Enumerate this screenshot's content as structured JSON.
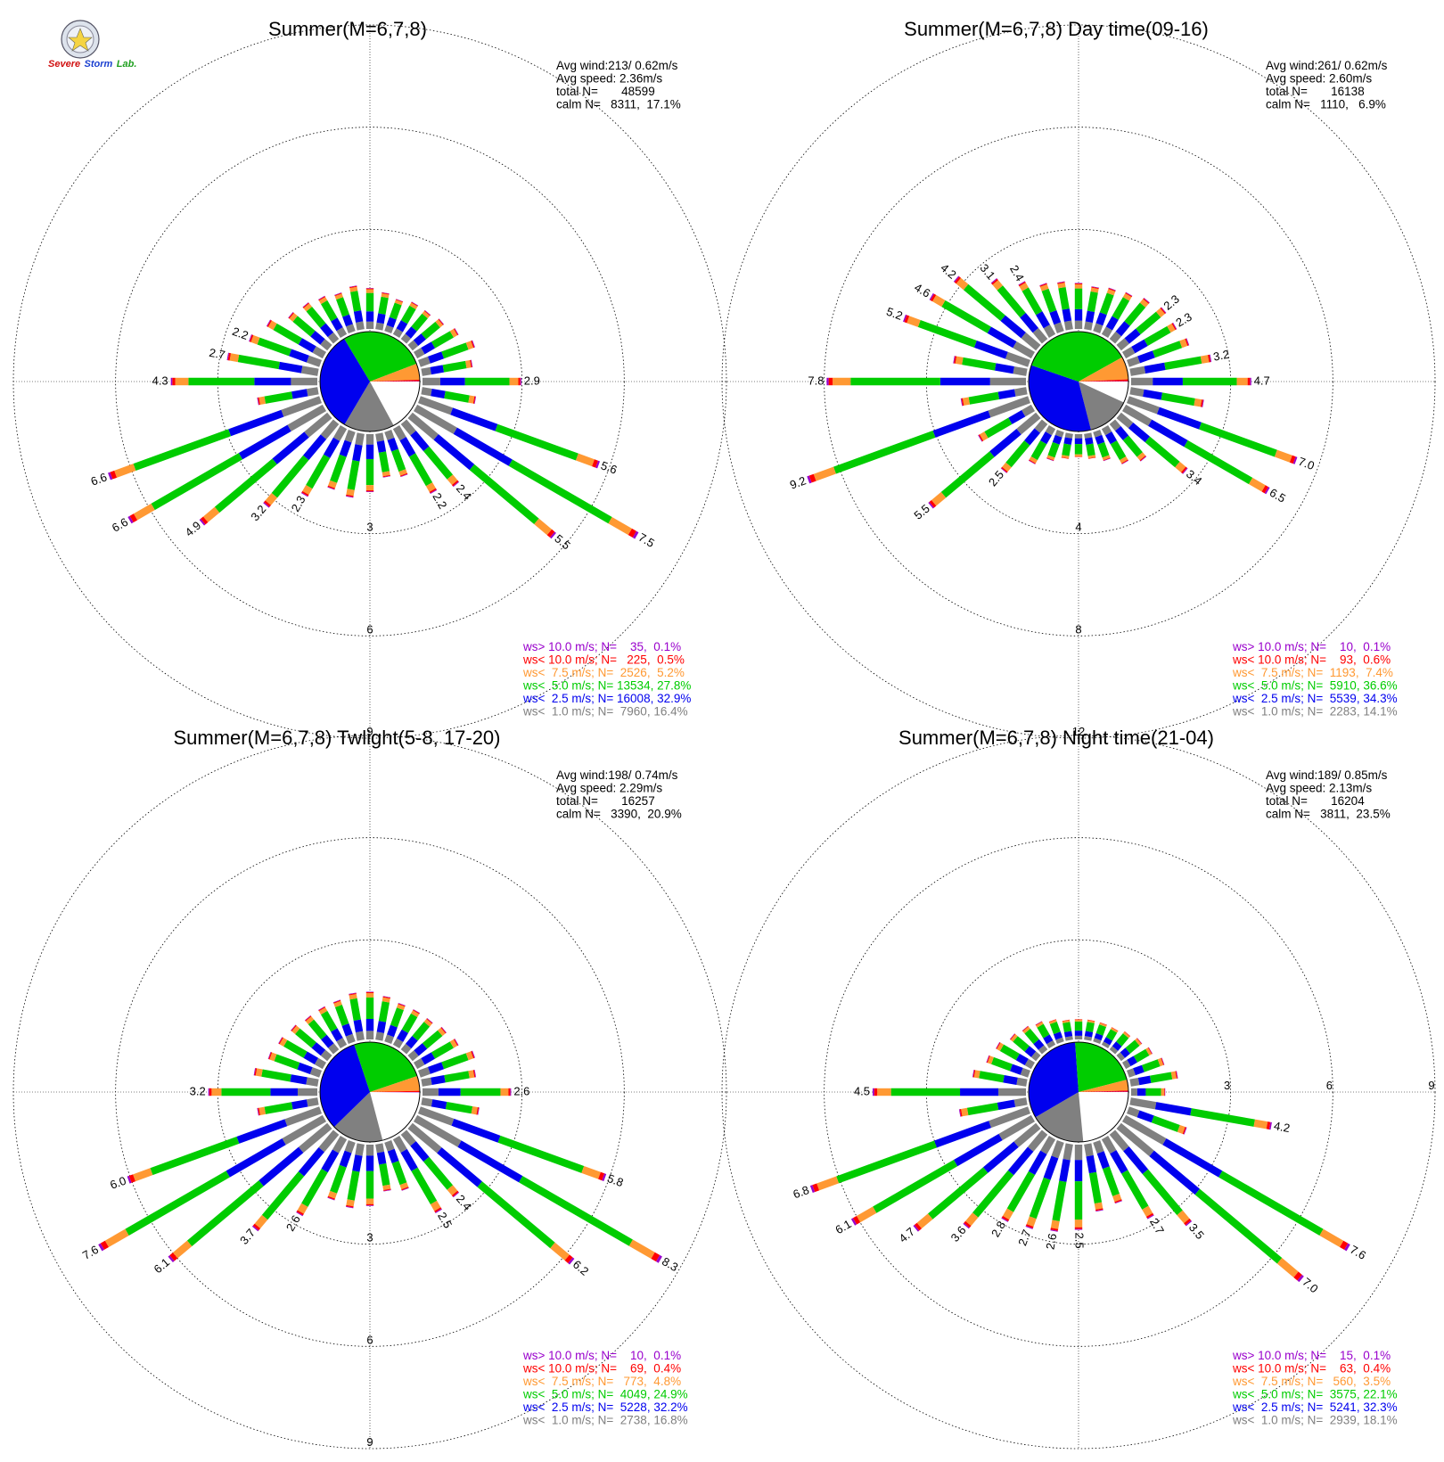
{
  "logo": {
    "line1": "Severe",
    "line2": "Storm",
    "line3": "Lab."
  },
  "colors": {
    "calm": "#ffffff",
    "c1": "#808080",
    "c2": "#0000ee",
    "c3": "#00cc00",
    "c4": "#ff9933",
    "c5": "#ff0000",
    "c6": "#9900cc"
  },
  "chart_data": [
    {
      "type": "pie",
      "title": "Summer(M=6,7,8)",
      "stats": [
        "Avg wind:213/ 0.62m/s",
        "Avg speed: 2.36m/s",
        "total N=       48599",
        "calm N=   8311,  17.1%"
      ],
      "legend": [
        "ws> 10.0 m/s; N=    35,  0.1%",
        "ws< 10.0 m/s; N=   225,  0.5%",
        "ws<  7.5 m/s; N=  2526,  5.2%",
        "ws<  5.0 m/s; N= 13534, 27.8%",
        "ws<  2.5 m/s; N= 16008, 32.9%",
        "ws<  1.0 m/s; N=  7960, 16.4%"
      ],
      "ring_labels": [
        "3",
        "6",
        "9"
      ],
      "ring_values": [
        3,
        6,
        9
      ],
      "max_value": 9,
      "bins": [
        {
          "dir": 0,
          "value": 1.2,
          "label": ""
        },
        {
          "dir": 10,
          "value": 1.1,
          "label": ""
        },
        {
          "dir": 20,
          "value": 1.0,
          "label": ""
        },
        {
          "dir": 30,
          "value": 1.1,
          "label": ""
        },
        {
          "dir": 40,
          "value": 1.1,
          "label": ""
        },
        {
          "dir": 50,
          "value": 1.2,
          "label": ""
        },
        {
          "dir": 60,
          "value": 1.4,
          "label": ""
        },
        {
          "dir": 70,
          "value": 1.7,
          "label": ""
        },
        {
          "dir": 80,
          "value": 1.5,
          "label": ""
        },
        {
          "dir": 90,
          "value": 2.9,
          "label": "2.9"
        },
        {
          "dir": 100,
          "value": 1.6,
          "label": ""
        },
        {
          "dir": 110,
          "value": 5.6,
          "label": "5.6"
        },
        {
          "dir": 120,
          "value": 7.5,
          "label": "7.5"
        },
        {
          "dir": 130,
          "value": 5.5,
          "label": "5.5"
        },
        {
          "dir": 140,
          "value": 2.4,
          "label": "2.4"
        },
        {
          "dir": 150,
          "value": 2.2,
          "label": "2.2"
        },
        {
          "dir": 160,
          "value": 1.4,
          "label": ""
        },
        {
          "dir": 170,
          "value": 1.3,
          "label": ""
        },
        {
          "dir": 180,
          "value": 1.7,
          "label": ""
        },
        {
          "dir": 190,
          "value": 1.9,
          "label": ""
        },
        {
          "dir": 200,
          "value": 1.8,
          "label": ""
        },
        {
          "dir": 210,
          "value": 2.3,
          "label": "2.3"
        },
        {
          "dir": 220,
          "value": 3.2,
          "label": "3.2"
        },
        {
          "dir": 230,
          "value": 4.9,
          "label": "4.9"
        },
        {
          "dir": 240,
          "value": 6.6,
          "label": "6.6"
        },
        {
          "dir": 250,
          "value": 6.6,
          "label": "6.6"
        },
        {
          "dir": 260,
          "value": 1.8,
          "label": ""
        },
        {
          "dir": 270,
          "value": 4.3,
          "label": "4.3"
        },
        {
          "dir": 280,
          "value": 2.7,
          "label": "2.7"
        },
        {
          "dir": 290,
          "value": 2.2,
          "label": "2.2"
        },
        {
          "dir": 300,
          "value": 1.9,
          "label": ""
        },
        {
          "dir": 310,
          "value": 1.5,
          "label": ""
        },
        {
          "dir": 320,
          "value": 1.4,
          "label": ""
        },
        {
          "dir": 330,
          "value": 1.3,
          "label": ""
        },
        {
          "dir": 340,
          "value": 1.2,
          "label": ""
        },
        {
          "dir": 350,
          "value": 1.3,
          "label": ""
        }
      ],
      "pie": [
        {
          "category": "calm",
          "pct": 17.1
        },
        {
          "category": "ws<  1.0 m/s",
          "pct": 16.4
        },
        {
          "category": "ws<  2.5 m/s",
          "pct": 32.9
        },
        {
          "category": "ws<  5.0 m/s",
          "pct": 27.8
        },
        {
          "category": "ws<  7.5 m/s",
          "pct": 5.2
        },
        {
          "category": "ws< 10.0 m/s",
          "pct": 0.5
        },
        {
          "category": "ws> 10.0 m/s",
          "pct": 0.1
        }
      ]
    },
    {
      "type": "pie",
      "title": "Summer(M=6,7,8) Day time(09-16)",
      "stats": [
        "Avg wind:261/ 0.62m/s",
        "Avg speed: 2.60m/s",
        "total N=       16138",
        "calm N=   1110,   6.9%"
      ],
      "legend": [
        "ws> 10.0 m/s; N=    10,  0.1%",
        "ws< 10.0 m/s; N=    93,  0.6%",
        "ws<  7.5 m/s; N=  1193,  7.4%",
        "ws<  5.0 m/s; N=  5910, 36.6%",
        "ws<  2.5 m/s; N=  5539, 34.3%",
        "ws<  1.0 m/s; N=  2283, 14.1%"
      ],
      "ring_labels": [
        "4",
        "8",
        "12"
      ],
      "ring_values": [
        4,
        8,
        12
      ],
      "max_value": 12,
      "bins": [
        {
          "dir": 0,
          "value": 1.8,
          "label": ""
        },
        {
          "dir": 10,
          "value": 1.7,
          "label": ""
        },
        {
          "dir": 20,
          "value": 1.8,
          "label": ""
        },
        {
          "dir": 30,
          "value": 1.9,
          "label": ""
        },
        {
          "dir": 40,
          "value": 2.1,
          "label": ""
        },
        {
          "dir": 50,
          "value": 2.3,
          "label": "2.3"
        },
        {
          "dir": 60,
          "value": 2.3,
          "label": "2.3"
        },
        {
          "dir": 70,
          "value": 2.5,
          "label": ""
        },
        {
          "dir": 80,
          "value": 3.2,
          "label": "3.2"
        },
        {
          "dir": 90,
          "value": 4.7,
          "label": "4.7"
        },
        {
          "dir": 100,
          "value": 2.9,
          "label": ""
        },
        {
          "dir": 110,
          "value": 7.0,
          "label": "7.0"
        },
        {
          "dir": 120,
          "value": 6.5,
          "label": "6.5"
        },
        {
          "dir": 130,
          "value": 3.4,
          "label": "3.4"
        },
        {
          "dir": 140,
          "value": 1.9,
          "label": ""
        },
        {
          "dir": 150,
          "value": 1.6,
          "label": ""
        },
        {
          "dir": 160,
          "value": 1.2,
          "label": ""
        },
        {
          "dir": 170,
          "value": 1.0,
          "label": ""
        },
        {
          "dir": 180,
          "value": 0.9,
          "label": ""
        },
        {
          "dir": 190,
          "value": 1.0,
          "label": ""
        },
        {
          "dir": 200,
          "value": 1.2,
          "label": ""
        },
        {
          "dir": 210,
          "value": 1.6,
          "label": ""
        },
        {
          "dir": 220,
          "value": 2.5,
          "label": "2.5"
        },
        {
          "dir": 230,
          "value": 5.5,
          "label": "5.5"
        },
        {
          "dir": 240,
          "value": 2.4,
          "label": ""
        },
        {
          "dir": 250,
          "value": 9.2,
          "label": "9.2"
        },
        {
          "dir": 260,
          "value": 2.6,
          "label": ""
        },
        {
          "dir": 270,
          "value": 7.8,
          "label": "7.8"
        },
        {
          "dir": 280,
          "value": 2.9,
          "label": ""
        },
        {
          "dir": 290,
          "value": 5.2,
          "label": "5.2"
        },
        {
          "dir": 300,
          "value": 4.6,
          "label": "4.6"
        },
        {
          "dir": 310,
          "value": 4.2,
          "label": "4.2"
        },
        {
          "dir": 320,
          "value": 3.1,
          "label": "3.1"
        },
        {
          "dir": 330,
          "value": 2.4,
          "label": "2.4"
        },
        {
          "dir": 340,
          "value": 2.0,
          "label": ""
        },
        {
          "dir": 350,
          "value": 1.9,
          "label": ""
        }
      ],
      "pie": [
        {
          "category": "calm",
          "pct": 6.9
        },
        {
          "category": "ws<  1.0 m/s",
          "pct": 14.1
        },
        {
          "category": "ws<  2.5 m/s",
          "pct": 34.3
        },
        {
          "category": "ws<  5.0 m/s",
          "pct": 36.6
        },
        {
          "category": "ws<  7.5 m/s",
          "pct": 7.4
        },
        {
          "category": "ws< 10.0 m/s",
          "pct": 0.6
        },
        {
          "category": "ws> 10.0 m/s",
          "pct": 0.1
        }
      ]
    },
    {
      "type": "pie",
      "title": "Summer(M=6,7,8) Twlight(5-8, 17-20)",
      "stats": [
        "Avg wind:198/ 0.74m/s",
        "Avg speed: 2.29m/s",
        "total N=       16257",
        "calm N=   3390,  20.9%"
      ],
      "legend": [
        "ws> 10.0 m/s; N=    10,  0.1%",
        "ws< 10.0 m/s; N=    69,  0.4%",
        "ws<  7.5 m/s; N=   773,  4.8%",
        "ws<  5.0 m/s; N=  4049, 24.9%",
        "ws<  2.5 m/s; N=  5228, 32.2%",
        "ws<  1.0 m/s; N=  2738, 16.8%"
      ],
      "ring_labels": [
        "3",
        "6",
        "9"
      ],
      "ring_values": [
        3,
        6,
        9
      ],
      "max_value": 9,
      "bins": [
        {
          "dir": 0,
          "value": 1.4,
          "label": ""
        },
        {
          "dir": 10,
          "value": 1.3,
          "label": ""
        },
        {
          "dir": 20,
          "value": 1.2,
          "label": ""
        },
        {
          "dir": 30,
          "value": 1.2,
          "label": ""
        },
        {
          "dir": 40,
          "value": 1.2,
          "label": ""
        },
        {
          "dir": 50,
          "value": 1.3,
          "label": ""
        },
        {
          "dir": 60,
          "value": 1.4,
          "label": ""
        },
        {
          "dir": 70,
          "value": 1.7,
          "label": ""
        },
        {
          "dir": 80,
          "value": 1.6,
          "label": ""
        },
        {
          "dir": 90,
          "value": 2.6,
          "label": "2.6"
        },
        {
          "dir": 100,
          "value": 1.7,
          "label": ""
        },
        {
          "dir": 110,
          "value": 5.8,
          "label": "5.8"
        },
        {
          "dir": 120,
          "value": 8.3,
          "label": "8.3"
        },
        {
          "dir": 130,
          "value": 6.2,
          "label": "6.2"
        },
        {
          "dir": 140,
          "value": 2.4,
          "label": "2.4"
        },
        {
          "dir": 150,
          "value": 2.5,
          "label": "2.5"
        },
        {
          "dir": 160,
          "value": 1.5,
          "label": ""
        },
        {
          "dir": 170,
          "value": 1.4,
          "label": ""
        },
        {
          "dir": 180,
          "value": 1.8,
          "label": ""
        },
        {
          "dir": 190,
          "value": 1.9,
          "label": ""
        },
        {
          "dir": 200,
          "value": 1.8,
          "label": ""
        },
        {
          "dir": 210,
          "value": 2.6,
          "label": "2.6"
        },
        {
          "dir": 220,
          "value": 3.7,
          "label": "3.7"
        },
        {
          "dir": 230,
          "value": 6.1,
          "label": "6.1"
        },
        {
          "dir": 240,
          "value": 7.6,
          "label": "7.6"
        },
        {
          "dir": 250,
          "value": 6.0,
          "label": "6.0"
        },
        {
          "dir": 260,
          "value": 1.8,
          "label": ""
        },
        {
          "dir": 270,
          "value": 3.2,
          "label": "3.2"
        },
        {
          "dir": 280,
          "value": 1.9,
          "label": ""
        },
        {
          "dir": 290,
          "value": 1.6,
          "label": ""
        },
        {
          "dir": 300,
          "value": 1.5,
          "label": ""
        },
        {
          "dir": 310,
          "value": 1.4,
          "label": ""
        },
        {
          "dir": 320,
          "value": 1.3,
          "label": ""
        },
        {
          "dir": 330,
          "value": 1.3,
          "label": ""
        },
        {
          "dir": 340,
          "value": 1.3,
          "label": ""
        },
        {
          "dir": 350,
          "value": 1.4,
          "label": ""
        }
      ],
      "pie": [
        {
          "category": "calm",
          "pct": 20.9
        },
        {
          "category": "ws<  1.0 m/s",
          "pct": 16.8
        },
        {
          "category": "ws<  2.5 m/s",
          "pct": 32.2
        },
        {
          "category": "ws<  5.0 m/s",
          "pct": 24.9
        },
        {
          "category": "ws<  7.5 m/s",
          "pct": 4.8
        },
        {
          "category": "ws< 10.0 m/s",
          "pct": 0.4
        },
        {
          "category": "ws> 10.0 m/s",
          "pct": 0.1
        }
      ]
    },
    {
      "type": "pie",
      "title": "Summer(M=6,7,8) Night time(21-04)",
      "stats": [
        "Avg wind:189/ 0.85m/s",
        "Avg speed: 2.13m/s",
        "total N=       16204",
        "calm N=   3811,  23.5%"
      ],
      "legend": [
        "ws> 10.0 m/s; N=    15,  0.1%",
        "ws< 10.0 m/s; N=    63,  0.4%",
        "ws<  7.5 m/s; N=   560,  3.5%",
        "ws<  5.0 m/s; N=  3575, 22.1%",
        "ws<  2.5 m/s; N=  5241, 32.3%",
        "ws<  1.0 m/s; N=  2939, 18.1%"
      ],
      "ring_labels": [
        "3",
        "6",
        "9"
      ],
      "ring_values": [
        3,
        6,
        9
      ],
      "max_value": 9,
      "bins": [
        {
          "dir": 0,
          "value": 0.6,
          "label": ""
        },
        {
          "dir": 10,
          "value": 0.6,
          "label": ""
        },
        {
          "dir": 20,
          "value": 0.6,
          "label": ""
        },
        {
          "dir": 30,
          "value": 0.6,
          "label": ""
        },
        {
          "dir": 40,
          "value": 0.7,
          "label": ""
        },
        {
          "dir": 50,
          "value": 0.8,
          "label": ""
        },
        {
          "dir": 60,
          "value": 0.9,
          "label": ""
        },
        {
          "dir": 70,
          "value": 1.1,
          "label": ""
        },
        {
          "dir": 80,
          "value": 1.4,
          "label": ""
        },
        {
          "dir": 90,
          "value": 1.0,
          "label": ""
        },
        {
          "dir": 100,
          "value": 4.2,
          "label": "4.2"
        },
        {
          "dir": 110,
          "value": 1.8,
          "label": ""
        },
        {
          "dir": 120,
          "value": 7.6,
          "label": "7.6"
        },
        {
          "dir": 130,
          "value": 7.0,
          "label": "7.0"
        },
        {
          "dir": 140,
          "value": 3.5,
          "label": "3.5"
        },
        {
          "dir": 150,
          "value": 2.7,
          "label": "2.7"
        },
        {
          "dir": 160,
          "value": 1.9,
          "label": ""
        },
        {
          "dir": 170,
          "value": 2.0,
          "label": ""
        },
        {
          "dir": 180,
          "value": 2.5,
          "label": "2.5"
        },
        {
          "dir": 190,
          "value": 2.6,
          "label": "2.6"
        },
        {
          "dir": 200,
          "value": 2.7,
          "label": "2.7"
        },
        {
          "dir": 210,
          "value": 2.8,
          "label": "2.8"
        },
        {
          "dir": 220,
          "value": 3.6,
          "label": "3.6"
        },
        {
          "dir": 230,
          "value": 4.7,
          "label": "4.7"
        },
        {
          "dir": 240,
          "value": 6.1,
          "label": "6.1"
        },
        {
          "dir": 250,
          "value": 6.8,
          "label": "6.8"
        },
        {
          "dir": 260,
          "value": 2.0,
          "label": ""
        },
        {
          "dir": 270,
          "value": 4.5,
          "label": "4.5"
        },
        {
          "dir": 280,
          "value": 1.6,
          "label": ""
        },
        {
          "dir": 290,
          "value": 1.3,
          "label": ""
        },
        {
          "dir": 300,
          "value": 1.2,
          "label": ""
        },
        {
          "dir": 310,
          "value": 1.0,
          "label": ""
        },
        {
          "dir": 320,
          "value": 0.9,
          "label": ""
        },
        {
          "dir": 330,
          "value": 0.8,
          "label": ""
        },
        {
          "dir": 340,
          "value": 0.7,
          "label": ""
        },
        {
          "dir": 350,
          "value": 0.6,
          "label": ""
        }
      ],
      "pie": [
        {
          "category": "calm",
          "pct": 23.5
        },
        {
          "category": "ws<  1.0 m/s",
          "pct": 18.1
        },
        {
          "category": "ws<  2.5 m/s",
          "pct": 32.3
        },
        {
          "category": "ws<  5.0 m/s",
          "pct": 22.1
        },
        {
          "category": "ws<  7.5 m/s",
          "pct": 3.5
        },
        {
          "category": "ws< 10.0 m/s",
          "pct": 0.4
        },
        {
          "category": "ws> 10.0 m/s",
          "pct": 0.1
        }
      ]
    }
  ]
}
